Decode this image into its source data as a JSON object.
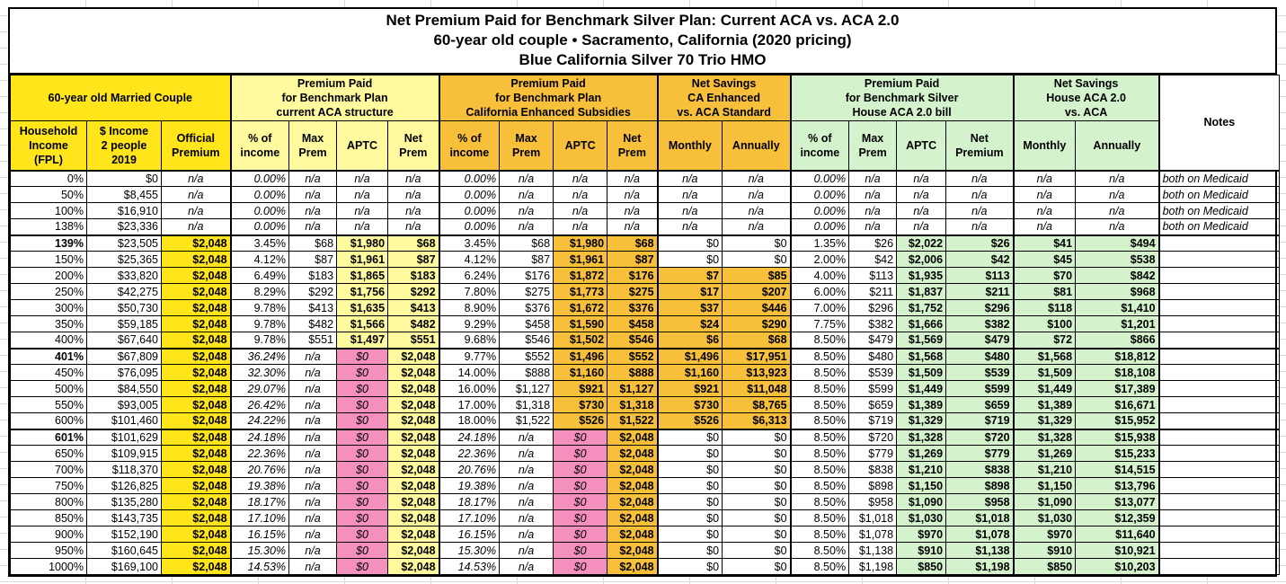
{
  "title": {
    "line1": "Net Premium Paid for Benchmark Silver Plan: Current ACA vs. ACA 2.0",
    "line2": "60-year old couple • Sacramento, California (2020 pricing)",
    "line3": "Blue California Silver 70 Trio HMO"
  },
  "colors": {
    "yellow": "#ffe51a",
    "light_yellow": "#fffa9e",
    "orange": "#f8bf3b",
    "pink": "#f48fbe",
    "green": "#d4f2cc",
    "grid": "#000000"
  },
  "groups": [
    {
      "label": "60-year old Married Couple",
      "span": 3,
      "color": "yellow"
    },
    {
      "label": "Premium Paid\nfor Benchmark Plan\ncurrent ACA structure",
      "span": 4,
      "color": "light_yellow"
    },
    {
      "label": "Premium Paid\nfor Benchmark Plan\nCalifornia Enhanced Subsidies",
      "span": 4,
      "color": "orange"
    },
    {
      "label": "Net Savings\nCA Enhanced\nvs. ACA Standard",
      "span": 2,
      "color": "orange"
    },
    {
      "label": "Premium Paid\nfor Benchmark Silver\nHouse ACA 2.0 bill",
      "span": 4,
      "color": "green"
    },
    {
      "label": "Net Savings\nHouse ACA 2.0\nvs. ACA",
      "span": 2,
      "color": "green"
    }
  ],
  "notes_header": "Notes",
  "columns": [
    {
      "key": "fpl",
      "label": "Household\nIncome\n(FPL)",
      "role": "fpl"
    },
    {
      "key": "income",
      "label": "$ Income\n2 people\n2019",
      "role": "income"
    },
    {
      "key": "official-premium",
      "label": "Official\nPremium",
      "role": "official"
    },
    {
      "key": "aca-pct-income",
      "label": "% of\nincome",
      "role": "pct",
      "variant": "L"
    },
    {
      "key": "aca-max-prem",
      "label": "Max\nPrem",
      "role": "max",
      "variant": "L"
    },
    {
      "key": "aca-aptc",
      "label": "APTC",
      "role": "aptc",
      "variant": "L"
    },
    {
      "key": "aca-net-prem",
      "label": "Net\nPrem",
      "role": "net",
      "variant": "L"
    },
    {
      "key": "ca-pct-income",
      "label": "% of\nincome",
      "role": "pct",
      "variant": "M"
    },
    {
      "key": "ca-max-prem",
      "label": "Max\nPrem",
      "role": "max",
      "variant": "M"
    },
    {
      "key": "ca-aptc",
      "label": "APTC",
      "role": "aptc",
      "variant": "M"
    },
    {
      "key": "ca-net-prem",
      "label": "Net\nPrem",
      "role": "net",
      "variant": "M"
    },
    {
      "key": "ca-savings-monthly",
      "label": "Monthly",
      "role": "sav",
      "variant": "M"
    },
    {
      "key": "ca-savings-annually",
      "label": "Annually",
      "role": "sav",
      "variant": "M"
    },
    {
      "key": "aca2-pct-income",
      "label": "% of\nincome",
      "role": "pct",
      "variant": "R"
    },
    {
      "key": "aca2-max-prem",
      "label": "Max\nPrem",
      "role": "max",
      "variant": "R"
    },
    {
      "key": "aca2-aptc",
      "label": "APTC",
      "role": "aptc",
      "variant": "R"
    },
    {
      "key": "aca2-net-premium",
      "label": "Net\nPremium",
      "role": "net",
      "variant": "R"
    },
    {
      "key": "aca2-savings-monthly",
      "label": "Monthly",
      "role": "sav",
      "variant": "R"
    },
    {
      "key": "aca2-savings-annually",
      "label": "Annually",
      "role": "sav",
      "variant": "R"
    },
    {
      "key": "notes",
      "label": "Notes",
      "role": "notes"
    }
  ],
  "rows": [
    [
      "0%",
      "$0",
      "n/a",
      "0.00%",
      "n/a",
      "n/a",
      "n/a",
      "0.00%",
      "n/a",
      "n/a",
      "n/a",
      "n/a",
      "n/a",
      "0.00%",
      "n/a",
      "n/a",
      "n/a",
      "n/a",
      "n/a",
      "both on Medicaid"
    ],
    [
      "50%",
      "$8,455",
      "n/a",
      "0.00%",
      "n/a",
      "n/a",
      "n/a",
      "0.00%",
      "n/a",
      "n/a",
      "n/a",
      "n/a",
      "n/a",
      "0.00%",
      "n/a",
      "n/a",
      "n/a",
      "n/a",
      "n/a",
      "both on Medicaid"
    ],
    [
      "100%",
      "$16,910",
      "n/a",
      "0.00%",
      "n/a",
      "n/a",
      "n/a",
      "0.00%",
      "n/a",
      "n/a",
      "n/a",
      "n/a",
      "n/a",
      "0.00%",
      "n/a",
      "n/a",
      "n/a",
      "n/a",
      "n/a",
      "both on Medicaid"
    ],
    [
      "138%",
      "$23,336",
      "n/a",
      "0.00%",
      "n/a",
      "n/a",
      "n/a",
      "0.00%",
      "n/a",
      "n/a",
      "n/a",
      "n/a",
      "n/a",
      "0.00%",
      "n/a",
      "n/a",
      "n/a",
      "n/a",
      "n/a",
      "both on Medicaid"
    ],
    [
      "139%",
      "$23,505",
      "$2,048",
      "3.45%",
      "$68",
      "$1,980",
      "$68",
      "3.45%",
      "$68",
      "$1,980",
      "$68",
      "$0",
      "$0",
      "1.35%",
      "$26",
      "$2,022",
      "$26",
      "$41",
      "$494",
      ""
    ],
    [
      "150%",
      "$25,365",
      "$2,048",
      "4.12%",
      "$87",
      "$1,961",
      "$87",
      "4.12%",
      "$87",
      "$1,961",
      "$87",
      "$0",
      "$0",
      "2.00%",
      "$42",
      "$2,006",
      "$42",
      "$45",
      "$538",
      ""
    ],
    [
      "200%",
      "$33,820",
      "$2,048",
      "6.49%",
      "$183",
      "$1,865",
      "$183",
      "6.24%",
      "$176",
      "$1,872",
      "$176",
      "$7",
      "$85",
      "4.00%",
      "$113",
      "$1,935",
      "$113",
      "$70",
      "$842",
      ""
    ],
    [
      "250%",
      "$42,275",
      "$2,048",
      "8.29%",
      "$292",
      "$1,756",
      "$292",
      "7.80%",
      "$275",
      "$1,773",
      "$275",
      "$17",
      "$207",
      "6.00%",
      "$211",
      "$1,837",
      "$211",
      "$81",
      "$968",
      ""
    ],
    [
      "300%",
      "$50,730",
      "$2,048",
      "9.78%",
      "$413",
      "$1,635",
      "$413",
      "8.90%",
      "$376",
      "$1,672",
      "$376",
      "$37",
      "$446",
      "7.00%",
      "$296",
      "$1,752",
      "$296",
      "$118",
      "$1,410",
      ""
    ],
    [
      "350%",
      "$59,185",
      "$2,048",
      "9.78%",
      "$482",
      "$1,566",
      "$482",
      "9.29%",
      "$458",
      "$1,590",
      "$458",
      "$24",
      "$290",
      "7.75%",
      "$382",
      "$1,666",
      "$382",
      "$100",
      "$1,201",
      ""
    ],
    [
      "400%",
      "$67,640",
      "$2,048",
      "9.78%",
      "$551",
      "$1,497",
      "$551",
      "9.68%",
      "$546",
      "$1,502",
      "$546",
      "$6",
      "$68",
      "8.50%",
      "$479",
      "$1,569",
      "$479",
      "$72",
      "$866",
      ""
    ],
    [
      "401%",
      "$67,809",
      "$2,048",
      "36.24%",
      "n/a",
      "$0",
      "$2,048",
      "9.77%",
      "$552",
      "$1,496",
      "$552",
      "$1,496",
      "$17,951",
      "8.50%",
      "$480",
      "$1,568",
      "$480",
      "$1,568",
      "$18,812",
      ""
    ],
    [
      "450%",
      "$76,095",
      "$2,048",
      "32.30%",
      "n/a",
      "$0",
      "$2,048",
      "14.00%",
      "$888",
      "$1,160",
      "$888",
      "$1,160",
      "$13,923",
      "8.50%",
      "$539",
      "$1,509",
      "$539",
      "$1,509",
      "$18,108",
      ""
    ],
    [
      "500%",
      "$84,550",
      "$2,048",
      "29.07%",
      "n/a",
      "$0",
      "$2,048",
      "16.00%",
      "$1,127",
      "$921",
      "$1,127",
      "$921",
      "$11,048",
      "8.50%",
      "$599",
      "$1,449",
      "$599",
      "$1,449",
      "$17,389",
      ""
    ],
    [
      "550%",
      "$93,005",
      "$2,048",
      "26.42%",
      "n/a",
      "$0",
      "$2,048",
      "17.00%",
      "$1,318",
      "$730",
      "$1,318",
      "$730",
      "$8,765",
      "8.50%",
      "$659",
      "$1,389",
      "$659",
      "$1,389",
      "$16,671",
      ""
    ],
    [
      "600%",
      "$101,460",
      "$2,048",
      "24.22%",
      "n/a",
      "$0",
      "$2,048",
      "18.00%",
      "$1,522",
      "$526",
      "$1,522",
      "$526",
      "$6,313",
      "8.50%",
      "$719",
      "$1,329",
      "$719",
      "$1,329",
      "$15,952",
      ""
    ],
    [
      "601%",
      "$101,629",
      "$2,048",
      "24.18%",
      "n/a",
      "$0",
      "$2,048",
      "24.18%",
      "n/a",
      "$0",
      "$2,048",
      "$0",
      "$0",
      "8.50%",
      "$720",
      "$1,328",
      "$720",
      "$1,328",
      "$15,938",
      ""
    ],
    [
      "650%",
      "$109,915",
      "$2,048",
      "22.36%",
      "n/a",
      "$0",
      "$2,048",
      "22.36%",
      "n/a",
      "$0",
      "$2,048",
      "$0",
      "$0",
      "8.50%",
      "$779",
      "$1,269",
      "$779",
      "$1,269",
      "$15,233",
      ""
    ],
    [
      "700%",
      "$118,370",
      "$2,048",
      "20.76%",
      "n/a",
      "$0",
      "$2,048",
      "20.76%",
      "n/a",
      "$0",
      "$2,048",
      "$0",
      "$0",
      "8.50%",
      "$838",
      "$1,210",
      "$838",
      "$1,210",
      "$14,515",
      ""
    ],
    [
      "750%",
      "$126,825",
      "$2,048",
      "19.38%",
      "n/a",
      "$0",
      "$2,048",
      "19.38%",
      "n/a",
      "$0",
      "$2,048",
      "$0",
      "$0",
      "8.50%",
      "$898",
      "$1,150",
      "$898",
      "$1,150",
      "$13,796",
      ""
    ],
    [
      "800%",
      "$135,280",
      "$2,048",
      "18.17%",
      "n/a",
      "$0",
      "$2,048",
      "18.17%",
      "n/a",
      "$0",
      "$2,048",
      "$0",
      "$0",
      "8.50%",
      "$958",
      "$1,090",
      "$958",
      "$1,090",
      "$13,077",
      ""
    ],
    [
      "850%",
      "$143,735",
      "$2,048",
      "17.10%",
      "n/a",
      "$0",
      "$2,048",
      "17.10%",
      "n/a",
      "$0",
      "$2,048",
      "$0",
      "$0",
      "8.50%",
      "$1,018",
      "$1,030",
      "$1,018",
      "$1,030",
      "$12,359",
      ""
    ],
    [
      "900%",
      "$152,190",
      "$2,048",
      "16.15%",
      "n/a",
      "$0",
      "$2,048",
      "16.15%",
      "n/a",
      "$0",
      "$2,048",
      "$0",
      "$0",
      "8.50%",
      "$1,078",
      "$970",
      "$1,078",
      "$970",
      "$11,640",
      ""
    ],
    [
      "950%",
      "$160,645",
      "$2,048",
      "15.30%",
      "n/a",
      "$0",
      "$2,048",
      "15.30%",
      "n/a",
      "$0",
      "$2,048",
      "$0",
      "$0",
      "8.50%",
      "$1,138",
      "$910",
      "$1,138",
      "$910",
      "$10,921",
      ""
    ],
    [
      "1000%",
      "$169,100",
      "$2,048",
      "14.53%",
      "n/a",
      "$0",
      "$2,048",
      "14.53%",
      "n/a",
      "$0",
      "$2,048",
      "$0",
      "$0",
      "8.50%",
      "$1,198",
      "$850",
      "$1,198",
      "$850",
      "$10,203",
      ""
    ]
  ]
}
